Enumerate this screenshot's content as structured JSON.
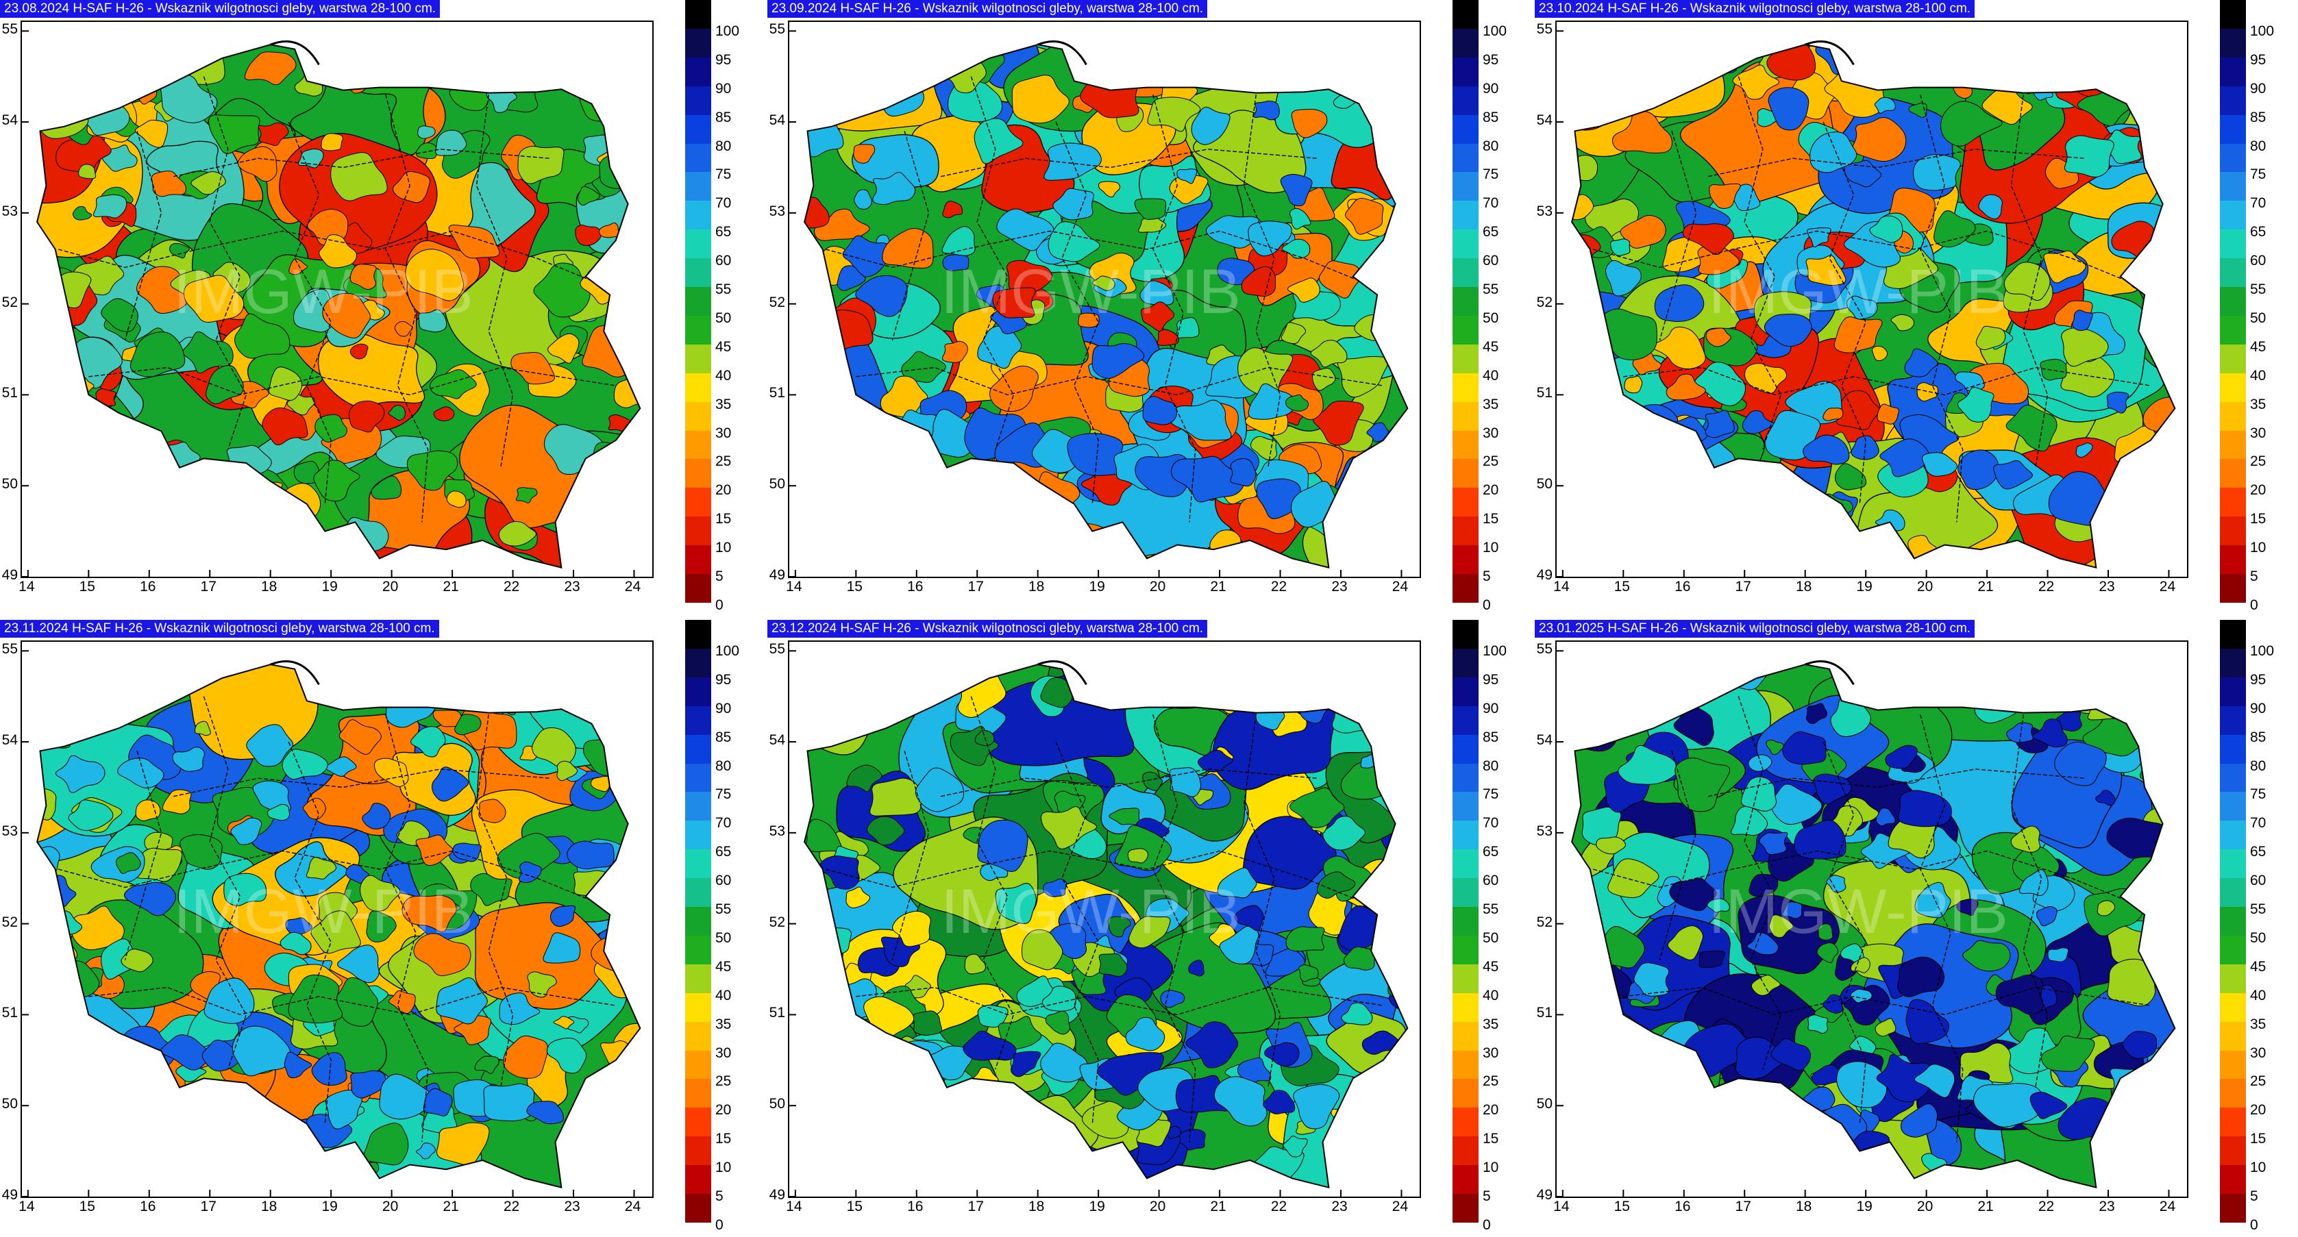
{
  "panels": [
    {
      "title": "23.08.2024 H-SAF H-26 - Wskaznik wilgotnosci gleby, warstwa 28-100 cm.",
      "palette": [
        "#16a52c",
        "#9fd21a",
        "#ffc000",
        "#ff7a00",
        "#e61e00",
        "#1fae1e",
        "#42c8b8"
      ]
    },
    {
      "title": "23.09.2024 H-SAF H-26 - Wskaznik wilgotnosci gleby, warstwa 28-100 cm.",
      "palette": [
        "#16a52c",
        "#9fd21a",
        "#ffc000",
        "#ff7a00",
        "#e61e00",
        "#18d4b4",
        "#1fb8e6",
        "#1660e6"
      ]
    },
    {
      "title": "23.10.2024 H-SAF H-26 - Wskaznik wilgotnosci gleby, warstwa 28-100 cm.",
      "palette": [
        "#16a52c",
        "#9fd21a",
        "#ffc000",
        "#ff7a00",
        "#e61e00",
        "#18d4b4",
        "#1fb8e6",
        "#1660e6"
      ]
    },
    {
      "title": "23.11.2024 H-SAF H-26 - Wskaznik wilgotnosci gleby, warstwa 28-100 cm.",
      "palette": [
        "#16a52c",
        "#9fd21a",
        "#ffc000",
        "#ff7a00",
        "#18d4b4",
        "#1fb8e6",
        "#1660e6"
      ]
    },
    {
      "title": "23.12.2024 H-SAF H-26 - Wskaznik wilgotnosci gleby, warstwa 28-100 cm.",
      "palette": [
        "#16a52c",
        "#0f8a2a",
        "#9fd21a",
        "#ffdf00",
        "#18d4b4",
        "#1fb8e6",
        "#1660e6",
        "#0a1fb8"
      ]
    },
    {
      "title": "23.01.2025 H-SAF H-26 - Wskaznik wilgotnosci gleby, warstwa 28-100 cm.",
      "palette": [
        "#16a52c",
        "#18d4b4",
        "#1fb8e6",
        "#1660e6",
        "#0a1fb8",
        "#9fd21a",
        "#0a0a7a"
      ]
    }
  ],
  "watermark": "IMGW-PIB",
  "axes": {
    "x_ticks": [
      "14",
      "15",
      "16",
      "17",
      "18",
      "19",
      "20",
      "21",
      "22",
      "23",
      "24"
    ],
    "y_ticks": [
      "55",
      "54",
      "53",
      "52",
      "51",
      "50",
      "49"
    ]
  },
  "colorbar": {
    "labels": [
      "100",
      "95",
      "90",
      "85",
      "80",
      "75",
      "70",
      "65",
      "60",
      "55",
      "50",
      "45",
      "40",
      "35",
      "30",
      "25",
      "20",
      "15",
      "10",
      "5",
      "0"
    ],
    "colors": [
      "#000000",
      "#0a0a50",
      "#0a0a8c",
      "#0a1fb8",
      "#0a40e0",
      "#1660e6",
      "#1f8ae8",
      "#1fb8e6",
      "#18d4b4",
      "#16c08a",
      "#16a52c",
      "#1fae1e",
      "#9fd21a",
      "#ffdf00",
      "#ffc000",
      "#ff9a00",
      "#ff7a00",
      "#ff3c00",
      "#e61e00",
      "#c00000",
      "#8c0000"
    ]
  }
}
